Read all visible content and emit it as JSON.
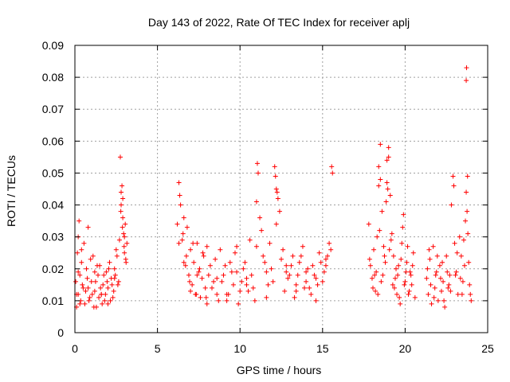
{
  "chart_data": {
    "type": "scatter",
    "title": "Day 143 of 2022, Rate Of TEC Index for receiver aplj",
    "xlabel": "GPS time / hours",
    "ylabel": "ROTI / TECUs",
    "xlim": [
      0,
      25
    ],
    "ylim": [
      0,
      0.09
    ],
    "xticks": [
      "0",
      "5",
      "10",
      "15",
      "20",
      "25"
    ],
    "yticks": [
      "0",
      "0.01",
      "0.02",
      "0.03",
      "0.04",
      "0.05",
      "0.06",
      "0.07",
      "0.08",
      "0.09"
    ],
    "grid": true,
    "marker": "plus",
    "color": "#ff0000",
    "series": [
      {
        "x": [
          0.05,
          0.1,
          0.15,
          0.2,
          0.25,
          0.3,
          0.35,
          0.4,
          0.5,
          0.6,
          0.7,
          0.8,
          0.9,
          1.0,
          1.1,
          1.2,
          1.3,
          1.4,
          1.5,
          1.6,
          1.7,
          1.8,
          1.9,
          2.0,
          2.1,
          2.2,
          2.3,
          2.4,
          2.5,
          2.6,
          2.7,
          2.75,
          2.8,
          2.85,
          2.9,
          2.95,
          3.0,
          3.05,
          3.1,
          3.15,
          0.1,
          0.2,
          0.3,
          0.45,
          0.55,
          0.65,
          0.75,
          0.85,
          0.95,
          1.05,
          1.15,
          1.25,
          1.35,
          1.45,
          1.55,
          1.65,
          1.75,
          1.85,
          1.95,
          2.05,
          2.15,
          2.25,
          2.35,
          2.45,
          2.55,
          2.65,
          2.78,
          2.88,
          2.98,
          3.08,
          0.2,
          0.4,
          0.8,
          1.2,
          1.6,
          2.0,
          2.4,
          2.8,
          2.9,
          3.0
        ],
        "y": [
          0.016,
          0.008,
          0.025,
          0.012,
          0.035,
          0.018,
          0.01,
          0.022,
          0.014,
          0.009,
          0.02,
          0.033,
          0.011,
          0.016,
          0.024,
          0.013,
          0.008,
          0.018,
          0.021,
          0.012,
          0.015,
          0.01,
          0.019,
          0.014,
          0.022,
          0.017,
          0.011,
          0.02,
          0.026,
          0.015,
          0.029,
          0.055,
          0.04,
          0.046,
          0.036,
          0.031,
          0.025,
          0.034,
          0.022,
          0.028,
          0.012,
          0.019,
          0.009,
          0.015,
          0.028,
          0.013,
          0.017,
          0.01,
          0.023,
          0.012,
          0.008,
          0.016,
          0.021,
          0.011,
          0.014,
          0.009,
          0.018,
          0.012,
          0.016,
          0.02,
          0.01,
          0.015,
          0.013,
          0.018,
          0.024,
          0.016,
          0.038,
          0.033,
          0.027,
          0.023,
          0.03,
          0.026,
          0.014,
          0.019,
          0.012,
          0.009,
          0.017,
          0.044,
          0.042,
          0.03
        ]
      },
      {
        "x": [
          6.2,
          6.3,
          6.4,
          6.5,
          6.6,
          6.7,
          6.8,
          6.9,
          7.0,
          7.1,
          7.2,
          7.3,
          7.4,
          7.5,
          7.6,
          7.7,
          7.8,
          7.9,
          8.0,
          8.2,
          8.4,
          8.6,
          8.8,
          9.0,
          9.2,
          9.4,
          9.6,
          9.8,
          10.0,
          10.2,
          10.4,
          10.6,
          10.8,
          11.0,
          11.1,
          11.2,
          11.4,
          11.6,
          11.8,
          12.0,
          12.1,
          12.2,
          12.3,
          12.4,
          12.6,
          12.8,
          13.0,
          13.2,
          13.4,
          13.6,
          13.8,
          14.0,
          14.2,
          14.4,
          14.6,
          14.8,
          15.0,
          15.2,
          15.4,
          15.6,
          6.35,
          6.55,
          6.75,
          6.95,
          7.15,
          7.35,
          7.55,
          7.75,
          7.95,
          8.1,
          8.3,
          8.5,
          8.7,
          8.9,
          9.1,
          9.3,
          9.5,
          9.7,
          9.9,
          10.1,
          10.3,
          10.5,
          10.7,
          10.9,
          11.3,
          11.5,
          11.7,
          11.9,
          12.5,
          12.7,
          12.9,
          13.1,
          13.3,
          13.5,
          13.7,
          13.9,
          14.1,
          14.3,
          14.5,
          14.7,
          14.9,
          15.1,
          15.3,
          15.5,
          6.3,
          6.6,
          7.0,
          7.4,
          8.0,
          8.6,
          9.2,
          9.8,
          10.4,
          11.0,
          11.6,
          12.2,
          12.8,
          13.4,
          14.0,
          14.6,
          15.2,
          11.05,
          12.15,
          12.25,
          15.55
        ],
        "y": [
          0.034,
          0.047,
          0.04,
          0.029,
          0.036,
          0.021,
          0.033,
          0.018,
          0.026,
          0.015,
          0.022,
          0.012,
          0.028,
          0.019,
          0.011,
          0.017,
          0.024,
          0.014,
          0.009,
          0.021,
          0.016,
          0.012,
          0.026,
          0.018,
          0.01,
          0.022,
          0.015,
          0.027,
          0.013,
          0.02,
          0.017,
          0.029,
          0.014,
          0.041,
          0.05,
          0.036,
          0.024,
          0.019,
          0.028,
          0.016,
          0.052,
          0.045,
          0.042,
          0.038,
          0.026,
          0.021,
          0.018,
          0.024,
          0.015,
          0.022,
          0.027,
          0.019,
          0.014,
          0.021,
          0.017,
          0.025,
          0.016,
          0.023,
          0.028,
          0.05,
          0.043,
          0.031,
          0.024,
          0.016,
          0.028,
          0.012,
          0.02,
          0.025,
          0.011,
          0.018,
          0.014,
          0.023,
          0.01,
          0.016,
          0.021,
          0.012,
          0.019,
          0.025,
          0.009,
          0.016,
          0.022,
          0.013,
          0.018,
          0.01,
          0.032,
          0.022,
          0.015,
          0.02,
          0.023,
          0.013,
          0.017,
          0.021,
          0.011,
          0.018,
          0.024,
          0.014,
          0.02,
          0.012,
          0.018,
          0.015,
          0.022,
          0.019,
          0.024,
          0.026,
          0.028,
          0.022,
          0.013,
          0.018,
          0.027,
          0.017,
          0.012,
          0.019,
          0.015,
          0.027,
          0.011,
          0.034,
          0.019,
          0.013,
          0.016,
          0.01,
          0.021,
          0.053,
          0.049,
          0.044,
          0.052
        ]
      },
      {
        "x": [
          17.8,
          17.9,
          18.0,
          18.1,
          18.2,
          18.3,
          18.4,
          18.5,
          18.6,
          18.7,
          18.8,
          18.9,
          19.0,
          19.1,
          19.2,
          19.3,
          19.4,
          19.5,
          19.6,
          19.7,
          19.8,
          19.9,
          20.0,
          20.1,
          20.2,
          20.3,
          20.4,
          20.5,
          20.6,
          17.85,
          18.05,
          18.25,
          18.45,
          18.65,
          18.85,
          19.05,
          19.25,
          19.45,
          19.65,
          19.85,
          20.05,
          20.25,
          20.45,
          18.15,
          18.35,
          18.55,
          18.75,
          18.95,
          19.15,
          19.35,
          19.55,
          19.75,
          19.95,
          20.15,
          20.35,
          18.4,
          18.5,
          18.9,
          19.0
        ],
        "y": [
          0.034,
          0.021,
          0.017,
          0.026,
          0.013,
          0.03,
          0.046,
          0.059,
          0.038,
          0.027,
          0.022,
          0.054,
          0.058,
          0.043,
          0.031,
          0.024,
          0.017,
          0.012,
          0.021,
          0.009,
          0.028,
          0.037,
          0.016,
          0.022,
          0.012,
          0.019,
          0.015,
          0.025,
          0.011,
          0.023,
          0.014,
          0.019,
          0.032,
          0.018,
          0.041,
          0.026,
          0.015,
          0.02,
          0.011,
          0.033,
          0.019,
          0.013,
          0.021,
          0.018,
          0.012,
          0.016,
          0.024,
          0.045,
          0.029,
          0.014,
          0.018,
          0.023,
          0.015,
          0.027,
          0.018,
          0.052,
          0.048,
          0.047,
          0.055
        ]
      },
      {
        "x": [
          21.3,
          21.4,
          21.5,
          21.6,
          21.7,
          21.8,
          21.9,
          22.0,
          22.1,
          22.2,
          22.3,
          22.4,
          22.5,
          22.6,
          22.7,
          22.8,
          22.9,
          23.0,
          23.1,
          23.2,
          23.3,
          23.4,
          23.5,
          23.6,
          23.7,
          23.8,
          23.9,
          24.0,
          21.35,
          21.55,
          21.75,
          21.95,
          22.15,
          22.35,
          22.55,
          22.75,
          22.95,
          23.15,
          23.35,
          23.55,
          23.75,
          23.95,
          21.45,
          21.85,
          22.25,
          22.65,
          23.05,
          23.45,
          23.85,
          23.65,
          23.7,
          23.72,
          23.78
        ],
        "y": [
          0.017,
          0.012,
          0.023,
          0.009,
          0.027,
          0.014,
          0.019,
          0.01,
          0.021,
          0.013,
          0.016,
          0.008,
          0.024,
          0.014,
          0.018,
          0.04,
          0.049,
          0.028,
          0.019,
          0.012,
          0.03,
          0.024,
          0.016,
          0.021,
          0.044,
          0.031,
          0.015,
          0.01,
          0.02,
          0.015,
          0.011,
          0.024,
          0.017,
          0.01,
          0.019,
          0.013,
          0.046,
          0.025,
          0.017,
          0.029,
          0.038,
          0.012,
          0.026,
          0.018,
          0.022,
          0.015,
          0.018,
          0.012,
          0.022,
          0.035,
          0.079,
          0.083,
          0.049
        ]
      }
    ]
  }
}
